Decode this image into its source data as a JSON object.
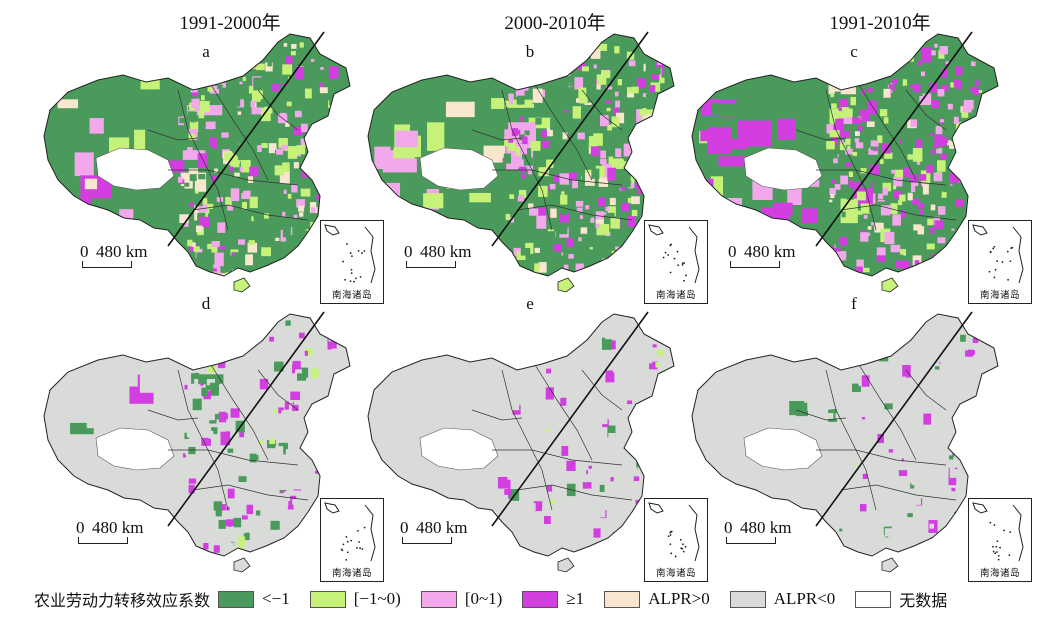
{
  "titles": {
    "col1": "1991-2000年",
    "col2": "2000-2010年",
    "col3": "1991-2010年"
  },
  "panels": [
    {
      "letter": "a",
      "row": "top",
      "col": 1
    },
    {
      "letter": "b",
      "row": "top",
      "col": 2
    },
    {
      "letter": "c",
      "row": "top",
      "col": 3
    },
    {
      "letter": "d",
      "row": "bottom",
      "col": 1
    },
    {
      "letter": "e",
      "row": "bottom",
      "col": 2
    },
    {
      "letter": "f",
      "row": "bottom",
      "col": 3
    }
  ],
  "scale": {
    "zero": "0",
    "distance": "480 km"
  },
  "inset_label": "南海诸岛",
  "legend": {
    "title": "农业劳动力转移效应系数",
    "items": [
      {
        "label": "<−1",
        "color": "#4a9a5c"
      },
      {
        "label": "[−1~0)",
        "color": "#c6f27a"
      },
      {
        "label": "[0~1)",
        "color": "#f4a8ec"
      },
      {
        "label": "≥1",
        "color": "#d23ee0"
      },
      {
        "label": "ALPR>0",
        "color": "#f8e6cf"
      },
      {
        "label": "ALPR<0",
        "color": "#d9dbd9"
      },
      {
        "label": "无数据",
        "color": "#ffffff"
      }
    ]
  },
  "palette": {
    "dark_green": "#4a9a5c",
    "light_green": "#c6f27a",
    "pink": "#f4a8ec",
    "magenta": "#d23ee0",
    "beige": "#f8e6cf",
    "gray": "#d9dbd9",
    "no_data": "#ffffff"
  }
}
